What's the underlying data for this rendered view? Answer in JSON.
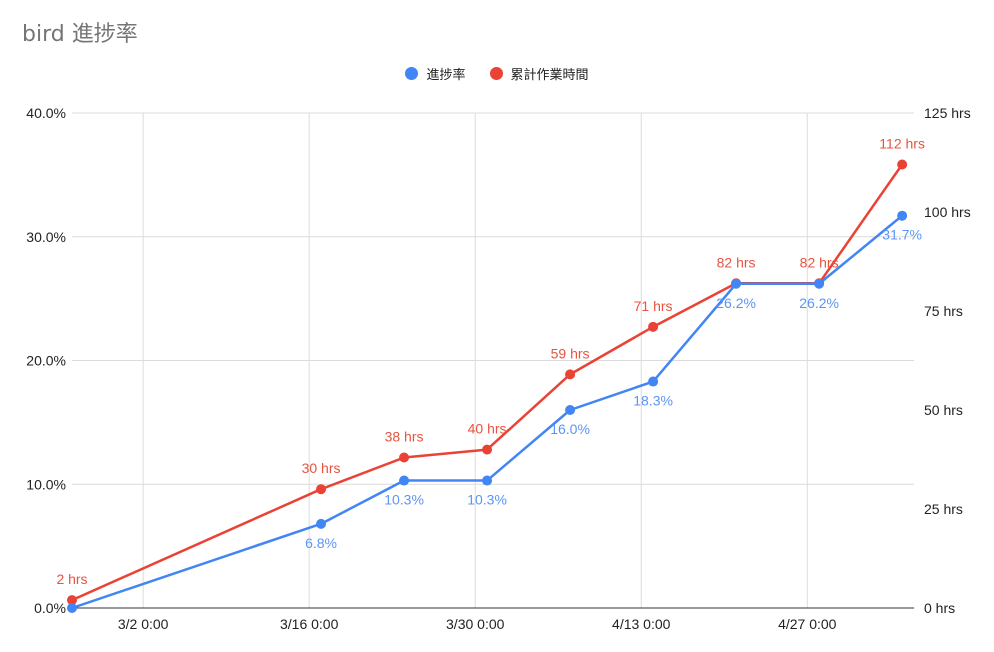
{
  "title": "bird 進捗率",
  "colors": {
    "progress": "#4285f4",
    "hours": "#ea4335",
    "progress_label": "#5b95f5",
    "hours_label": "#e8533f",
    "grid": "#dcdcdc"
  },
  "chart_data": {
    "type": "line",
    "title": "bird 進捗率",
    "legend_position": "top",
    "grid": true,
    "x_axis": {
      "type": "date",
      "range": [
        "2021-02-24",
        "2021-05-06"
      ],
      "ticks": [
        {
          "date": "2021-03-02",
          "label": "3/2 0:00"
        },
        {
          "date": "2021-03-16",
          "label": "3/16 0:00"
        },
        {
          "date": "2021-03-30",
          "label": "3/30 0:00"
        },
        {
          "date": "2021-04-13",
          "label": "4/13 0:00"
        },
        {
          "date": "2021-04-27",
          "label": "4/27 0:00"
        }
      ]
    },
    "y_left": {
      "min": 0,
      "max": 40,
      "ticks": [
        "0.0%",
        "10.0%",
        "20.0%",
        "30.0%",
        "40.0%"
      ]
    },
    "y_right": {
      "min": 0,
      "max": 125,
      "ticks": [
        "0 hrs",
        "25 hrs",
        "50 hrs",
        "75 hrs",
        "100 hrs",
        "125 hrs"
      ]
    },
    "series": [
      {
        "name": "進捗率",
        "axis": "left",
        "points": [
          {
            "x": "2021-02-24",
            "y": 0,
            "label": ""
          },
          {
            "x": "2021-03-17",
            "y": 6.8,
            "label": "6.8%"
          },
          {
            "x": "2021-03-24",
            "y": 10.3,
            "label": "10.3%"
          },
          {
            "x": "2021-03-31",
            "y": 10.3,
            "label": "10.3%"
          },
          {
            "x": "2021-04-07",
            "y": 16.0,
            "label": "16.0%"
          },
          {
            "x": "2021-04-14",
            "y": 18.3,
            "label": "18.3%"
          },
          {
            "x": "2021-04-21",
            "y": 26.2,
            "label": "26.2%"
          },
          {
            "x": "2021-04-28",
            "y": 26.2,
            "label": "26.2%"
          },
          {
            "x": "2021-05-05",
            "y": 31.7,
            "label": "31.7%"
          }
        ]
      },
      {
        "name": "累計作業時間",
        "axis": "right",
        "points": [
          {
            "x": "2021-02-24",
            "y": 2,
            "label": "2 hrs"
          },
          {
            "x": "2021-03-17",
            "y": 30,
            "label": "30 hrs"
          },
          {
            "x": "2021-03-24",
            "y": 38,
            "label": "38 hrs"
          },
          {
            "x": "2021-03-31",
            "y": 40,
            "label": "40 hrs"
          },
          {
            "x": "2021-04-07",
            "y": 59,
            "label": "59 hrs"
          },
          {
            "x": "2021-04-14",
            "y": 71,
            "label": "71 hrs"
          },
          {
            "x": "2021-04-21",
            "y": 82,
            "label": "82 hrs"
          },
          {
            "x": "2021-04-28",
            "y": 82,
            "label": "82 hrs"
          },
          {
            "x": "2021-05-05",
            "y": 112,
            "label": "112 hrs"
          }
        ]
      }
    ]
  }
}
